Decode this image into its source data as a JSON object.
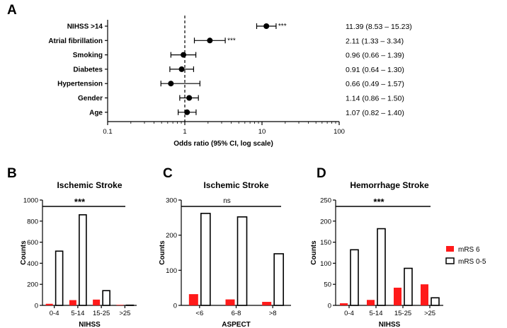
{
  "panel_labels": [
    "A",
    "B",
    "C",
    "D"
  ],
  "legend": {
    "red_label": "mRS 6",
    "white_label": "mRS 0-5",
    "red_color": "#ff1a1a",
    "white_color": "#ffffff"
  },
  "chart_data": [
    {
      "panel": "A",
      "type": "scatter",
      "subtype": "forest",
      "title": "",
      "xlabel": "Odds ratio (95% CI, log scale)",
      "xscale": "log",
      "xlim": [
        0.1,
        100
      ],
      "xticks": [
        0.1,
        1,
        10,
        100
      ],
      "xtick_labels": [
        "0.1",
        "1",
        "10",
        "100"
      ],
      "reference_line": 1,
      "rows": [
        {
          "label": "NIHSS >14",
          "or": 11.39,
          "lo": 8.53,
          "hi": 15.23,
          "sig": "***",
          "ci_text": "11.39 (8.53 – 15.23)"
        },
        {
          "label": "Atrial fibrillation",
          "or": 2.11,
          "lo": 1.33,
          "hi": 3.34,
          "sig": "***",
          "ci_text": "2.11 (1.33 – 3.34)"
        },
        {
          "label": "Smoking",
          "or": 0.96,
          "lo": 0.66,
          "hi": 1.39,
          "sig": "",
          "ci_text": "0.96 (0.66 – 1.39)"
        },
        {
          "label": "Diabetes",
          "or": 0.91,
          "lo": 0.64,
          "hi": 1.3,
          "sig": "",
          "ci_text": "0.91 (0.64 – 1.30)"
        },
        {
          "label": "Hypertension",
          "or": 0.66,
          "lo": 0.49,
          "hi": 1.57,
          "sig": "",
          "ci_text": "0.66 (0.49 – 1.57)"
        },
        {
          "label": "Gender",
          "or": 1.14,
          "lo": 0.86,
          "hi": 1.5,
          "sig": "",
          "ci_text": "1.14 (0.86 – 1.50)"
        },
        {
          "label": "Age",
          "or": 1.07,
          "lo": 0.82,
          "hi": 1.4,
          "sig": "",
          "ci_text": "1.07 (0.82 – 1.40)"
        }
      ]
    },
    {
      "panel": "B",
      "type": "bar",
      "title": "Ischemic Stroke",
      "xlabel": "NIHSS",
      "ylabel": "Counts",
      "ylim": [
        0,
        1000
      ],
      "yticks": [
        0,
        200,
        400,
        600,
        800,
        1000
      ],
      "ytick_labels": [
        "0",
        "200",
        "400",
        "600",
        "800",
        "1000"
      ],
      "categories": [
        "0-4",
        "5-14",
        "15-25",
        ">25"
      ],
      "series": [
        {
          "name": "mRS 6",
          "values": [
            15,
            50,
            55,
            5
          ]
        },
        {
          "name": "mRS 0-5",
          "values": [
            515,
            860,
            140,
            2
          ]
        }
      ],
      "significance": "***"
    },
    {
      "panel": "C",
      "type": "bar",
      "title": "Ischemic Stroke",
      "xlabel": "ASPECT",
      "ylabel": "Counts",
      "ylim": [
        0,
        300
      ],
      "yticks": [
        0,
        100,
        200,
        300
      ],
      "ytick_labels": [
        "0",
        "100",
        "200",
        "300"
      ],
      "categories": [
        "<6",
        "6-8",
        ">8"
      ],
      "series": [
        {
          "name": "mRS 6",
          "values": [
            32,
            17,
            10
          ]
        },
        {
          "name": "mRS 0-5",
          "values": [
            262,
            252,
            147
          ]
        }
      ],
      "significance": "ns"
    },
    {
      "panel": "D",
      "type": "bar",
      "title": "Hemorrhage Stroke",
      "xlabel": "NIHSS",
      "ylabel": "Counts",
      "ylim": [
        0,
        250
      ],
      "yticks": [
        0,
        50,
        100,
        150,
        200,
        250
      ],
      "ytick_labels": [
        "0",
        "50",
        "100",
        "150",
        "200",
        "250"
      ],
      "categories": [
        "0-4",
        "5-14",
        "15-25",
        ">25"
      ],
      "series": [
        {
          "name": "mRS 6",
          "values": [
            5,
            13,
            42,
            50
          ]
        },
        {
          "name": "mRS 0-5",
          "values": [
            132,
            182,
            88,
            18
          ]
        }
      ],
      "significance": "***"
    }
  ]
}
